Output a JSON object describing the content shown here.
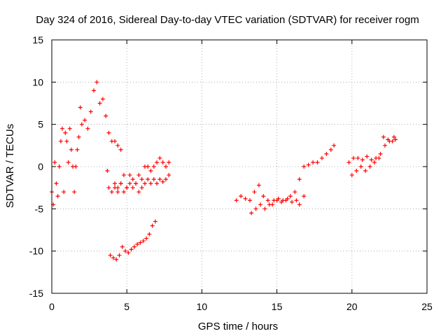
{
  "chart_data": {
    "type": "scatter",
    "title": "Day 324 of 2016, Sidereal Day-to-day VTEC variation (SDTVAR) for receiver rogm",
    "xlabel": "GPS time / hours",
    "ylabel": "SDTVAR / TECUs",
    "xlim": [
      0,
      25
    ],
    "ylim": [
      -15,
      15
    ],
    "xticks": [
      0,
      5,
      10,
      15,
      20,
      25
    ],
    "yticks": [
      -15,
      -10,
      -5,
      0,
      5,
      10,
      15
    ],
    "grid": true,
    "marker": "+",
    "color": "#ff0000",
    "series": [
      {
        "x": [
          0.0,
          0.1,
          0.2,
          0.3,
          0.4,
          0.5,
          0.6,
          0.7,
          0.8,
          0.9,
          1.0,
          1.1,
          1.2,
          1.3,
          1.4
        ],
        "y": [
          -3.0,
          -4.5,
          0.5,
          -2.0,
          -3.5,
          0.0,
          3.0,
          4.5,
          -3.0,
          4.0,
          3.0,
          0.5,
          4.5,
          2.0,
          0.0
        ]
      },
      {
        "x": [
          1.5,
          1.6,
          1.7,
          1.8,
          1.9,
          2.0,
          2.2,
          2.4,
          2.6,
          2.8,
          3.0,
          3.2,
          3.4,
          3.6,
          3.8,
          4.0,
          4.2,
          4.4,
          4.6
        ],
        "y": [
          -3.0,
          0.0,
          2.0,
          3.5,
          7.0,
          5.0,
          5.5,
          4.5,
          6.5,
          9.0,
          10.0,
          7.5,
          8.0,
          6.0,
          4.0,
          3.0,
          3.0,
          2.5,
          2.0
        ]
      },
      {
        "x": [
          3.7,
          3.8,
          4.0,
          4.2,
          4.4,
          4.6,
          4.8,
          5.0,
          5.2,
          5.4,
          5.6,
          5.8,
          6.0,
          6.2,
          6.4,
          6.6,
          6.8,
          7.0,
          7.2,
          7.4,
          7.6,
          7.8
        ],
        "y": [
          -0.5,
          -2.5,
          -3.0,
          -2.5,
          -3.0,
          -2.0,
          -1.0,
          -2.5,
          -1.0,
          -1.5,
          -2.0,
          -1.0,
          -1.5,
          0.0,
          0.0,
          -0.5,
          0.0,
          0.5,
          1.0,
          0.5,
          0.0,
          0.5
        ]
      },
      {
        "x": [
          4.2,
          4.4,
          4.6,
          4.8,
          5.0,
          5.2,
          5.4,
          5.6,
          5.8,
          6.0,
          6.2,
          6.4,
          6.6,
          6.8,
          7.0,
          7.2,
          7.4,
          7.6,
          7.8
        ],
        "y": [
          -2.0,
          -2.5,
          -2.0,
          -3.0,
          -2.5,
          -2.0,
          -2.5,
          -2.0,
          -3.0,
          -2.5,
          -2.0,
          -1.5,
          -2.0,
          -1.5,
          -2.0,
          -1.5,
          -1.8,
          -1.5,
          -1.0
        ]
      },
      {
        "x": [
          3.9,
          4.1,
          4.3,
          4.5,
          4.7,
          4.9,
          5.1,
          5.3,
          5.5,
          5.7,
          5.9,
          6.1,
          6.3,
          6.5,
          6.7,
          6.9
        ],
        "y": [
          -10.5,
          -10.8,
          -11.0,
          -10.5,
          -9.5,
          -10.0,
          -10.2,
          -9.8,
          -9.5,
          -9.2,
          -9.0,
          -8.8,
          -8.5,
          -8.0,
          -7.0,
          -6.5
        ]
      },
      {
        "x": [
          12.3,
          12.6,
          12.9,
          13.2,
          13.5,
          13.8,
          14.1,
          14.4,
          14.7,
          15.0,
          15.3,
          15.6,
          15.9,
          16.2,
          16.5,
          16.8,
          17.1,
          17.4,
          17.7,
          18.0,
          18.3,
          18.6,
          18.8
        ],
        "y": [
          -4.0,
          -3.5,
          -3.8,
          -4.0,
          -3.0,
          -2.2,
          -3.5,
          -4.0,
          -4.5,
          -4.0,
          -4.2,
          -4.0,
          -3.5,
          -3.0,
          -1.5,
          0.0,
          0.2,
          0.5,
          0.5,
          1.0,
          1.5,
          2.0,
          2.5
        ]
      },
      {
        "x": [
          13.3,
          13.6,
          13.9,
          14.2,
          14.5,
          14.8,
          15.1,
          15.4,
          15.7,
          16.0,
          16.3,
          16.5,
          16.8
        ],
        "y": [
          -5.5,
          -5.0,
          -4.5,
          -5.0,
          -4.5,
          -4.0,
          -3.8,
          -4.0,
          -3.8,
          -4.2,
          -4.0,
          -4.5,
          -3.5
        ]
      },
      {
        "x": [
          19.8,
          20.1,
          20.4,
          20.7,
          21.0,
          21.3,
          21.6,
          21.9,
          22.2,
          22.5,
          22.8
        ],
        "y": [
          0.5,
          1.0,
          1.0,
          0.8,
          1.2,
          0.8,
          1.0,
          1.5,
          2.5,
          3.0,
          3.5
        ]
      },
      {
        "x": [
          20.0,
          20.3,
          20.6,
          20.9,
          21.2,
          21.5,
          21.8,
          22.1,
          22.4,
          22.7,
          22.9
        ],
        "y": [
          -1.0,
          -0.5,
          0.0,
          -0.5,
          0.0,
          0.5,
          1.0,
          3.5,
          3.2,
          3.0,
          3.2
        ]
      }
    ]
  }
}
